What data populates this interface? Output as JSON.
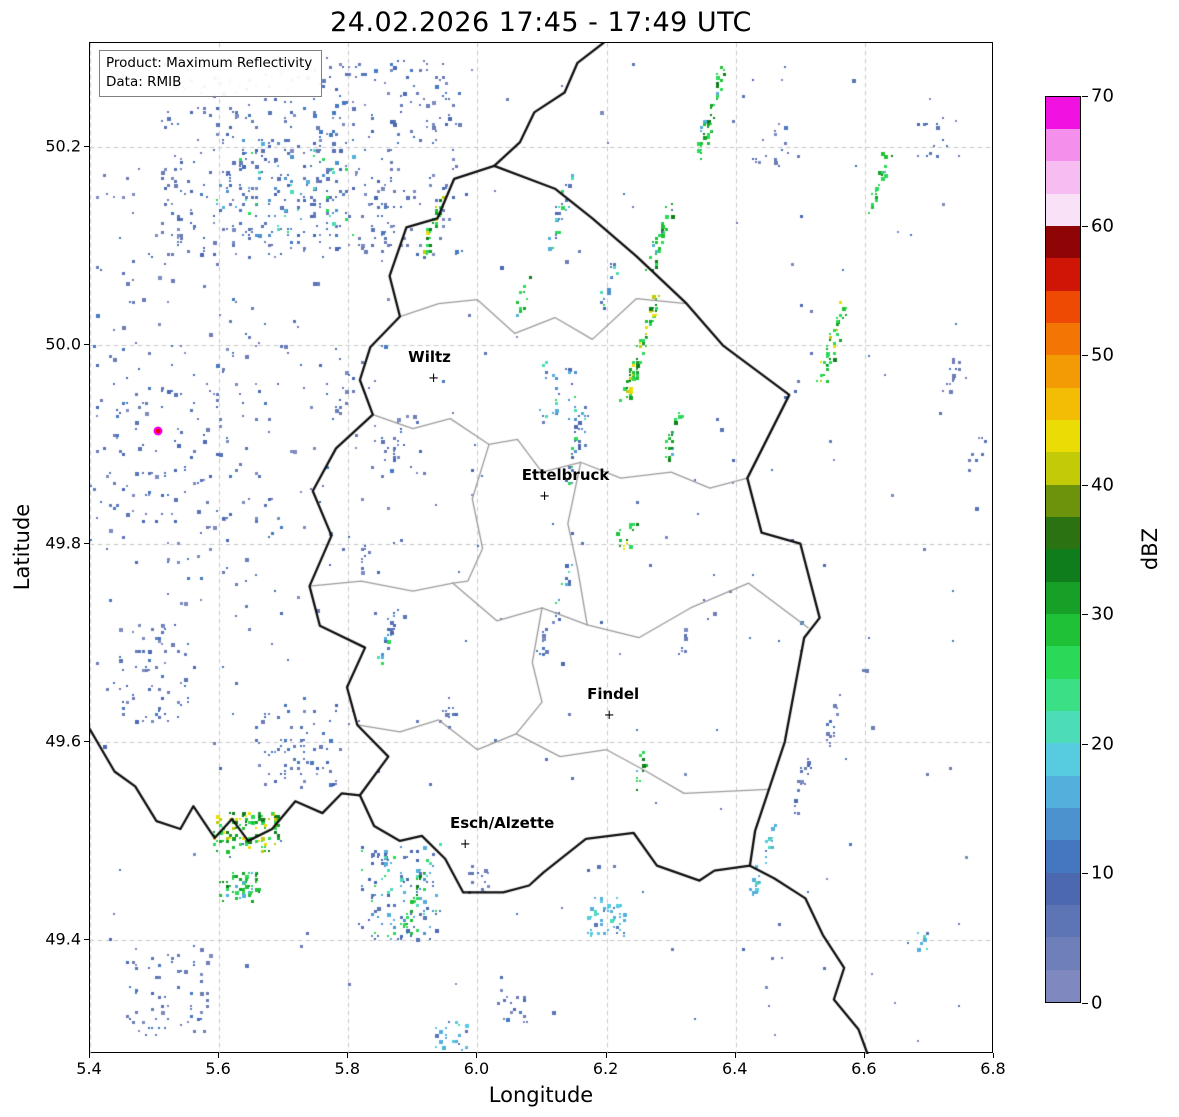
{
  "title": "24.02.2026 17:45 - 17:49 UTC",
  "info_box": {
    "line1": "Product: Maximum Reflectivity",
    "line2": "Data: RMIB"
  },
  "chart_data": {
    "type": "heatmap",
    "title": "24.02.2026 17:45 - 17:49 UTC",
    "xlabel": "Longitude",
    "ylabel": "Latitude",
    "xlim": [
      5.4,
      6.8
    ],
    "ylim": [
      49.285,
      50.305
    ],
    "xticks": [
      5.4,
      5.6,
      5.8,
      6.0,
      6.2,
      6.4,
      6.6,
      6.8
    ],
    "yticks": [
      49.4,
      49.6,
      49.8,
      50.0,
      50.2
    ],
    "grid": "dashed",
    "colorbar": {
      "label": "dBZ",
      "vmin": 0,
      "vmax": 70,
      "ticks": [
        0,
        10,
        20,
        30,
        40,
        50,
        60,
        70
      ],
      "colors": [
        "#8089bf",
        "#6e7fba",
        "#5d74b5",
        "#4c69b0",
        "#4477c0",
        "#4b92cf",
        "#53afdc",
        "#57cbe0",
        "#4cdcb8",
        "#3bdf86",
        "#2bd958",
        "#1fc136",
        "#17a028",
        "#0f7d1b",
        "#2b7212",
        "#6d930c",
        "#c3ca07",
        "#ecdc06",
        "#f3bd06",
        "#f39b05",
        "#f37504",
        "#ef4a04",
        "#cf1506",
        "#8f0505",
        "#f9e2f7",
        "#f7bcf2",
        "#f48fec",
        "#f112e2"
      ]
    },
    "cities": [
      {
        "name": "Wiltz",
        "lon": 5.932,
        "lat": 49.966,
        "dx": -4
      },
      {
        "name": "Ettelbruck",
        "lon": 6.104,
        "lat": 49.847,
        "dx": 21
      },
      {
        "name": "Findel",
        "lon": 6.204,
        "lat": 49.626,
        "dx": 4
      },
      {
        "name": "Esch/Alzette",
        "lon": 5.981,
        "lat": 49.496,
        "dx": 37
      }
    ],
    "radar_site": {
      "lon": 5.505,
      "lat": 49.914,
      "fill": "#e8000b",
      "edge": "#ff00ff"
    },
    "borders": {
      "national": [
        [
          [
            6.026,
            50.181
          ],
          [
            5.964,
            50.168
          ],
          [
            5.938,
            50.128
          ],
          [
            5.89,
            50.119
          ],
          [
            5.864,
            50.07
          ],
          [
            5.88,
            50.029
          ],
          [
            5.834,
            49.998
          ],
          [
            5.818,
            49.965
          ],
          [
            5.838,
            49.93
          ],
          [
            5.781,
            49.896
          ],
          [
            5.745,
            49.853
          ],
          [
            5.774,
            49.808
          ],
          [
            5.74,
            49.757
          ],
          [
            5.756,
            49.717
          ],
          [
            5.826,
            49.695
          ],
          [
            5.798,
            49.655
          ],
          [
            5.814,
            49.617
          ],
          [
            5.862,
            49.585
          ],
          [
            5.818,
            49.546
          ],
          [
            5.84,
            49.515
          ],
          [
            5.88,
            49.5
          ],
          [
            5.914,
            49.505
          ],
          [
            5.95,
            49.482
          ],
          [
            5.978,
            49.448
          ],
          [
            6.04,
            49.448
          ],
          [
            6.08,
            49.455
          ],
          [
            6.102,
            49.468
          ],
          [
            6.168,
            49.502
          ],
          [
            6.242,
            49.508
          ],
          [
            6.278,
            49.475
          ],
          [
            6.344,
            49.46
          ],
          [
            6.367,
            49.47
          ],
          [
            6.422,
            49.475
          ],
          [
            6.43,
            49.51
          ],
          [
            6.476,
            49.6
          ],
          [
            6.506,
            49.705
          ],
          [
            6.53,
            49.725
          ],
          [
            6.5,
            49.8
          ],
          [
            6.44,
            49.811
          ],
          [
            6.418,
            49.866
          ],
          [
            6.483,
            49.95
          ],
          [
            6.38,
            50.0
          ],
          [
            6.324,
            50.042
          ],
          [
            6.246,
            50.09
          ],
          [
            6.178,
            50.128
          ],
          [
            6.12,
            50.158
          ],
          [
            6.026,
            50.181
          ]
        ],
        [
          [
            6.026,
            50.181
          ],
          [
            6.066,
            50.205
          ],
          [
            6.088,
            50.235
          ],
          [
            6.135,
            50.255
          ],
          [
            6.155,
            50.285
          ],
          [
            6.205,
            50.31
          ]
        ],
        [
          [
            5.395,
            49.618
          ],
          [
            5.438,
            49.57
          ],
          [
            5.47,
            49.555
          ],
          [
            5.503,
            49.52
          ],
          [
            5.54,
            49.512
          ],
          [
            5.56,
            49.535
          ],
          [
            5.593,
            49.503
          ],
          [
            5.62,
            49.522
          ],
          [
            5.645,
            49.5
          ],
          [
            5.682,
            49.512
          ],
          [
            5.718,
            49.54
          ],
          [
            5.76,
            49.528
          ],
          [
            5.79,
            49.548
          ],
          [
            5.818,
            49.546
          ]
        ],
        [
          [
            6.422,
            49.475
          ],
          [
            6.46,
            49.462
          ],
          [
            6.508,
            49.442
          ],
          [
            6.535,
            49.405
          ],
          [
            6.568,
            49.372
          ],
          [
            6.552,
            49.34
          ],
          [
            6.59,
            49.31
          ],
          [
            6.607,
            49.28
          ]
        ]
      ],
      "regional": [
        [
          [
            5.88,
            50.029
          ],
          [
            5.94,
            50.042
          ],
          [
            6.0,
            50.046
          ],
          [
            6.058,
            50.012
          ],
          [
            6.12,
            50.028
          ],
          [
            6.178,
            50.006
          ],
          [
            6.246,
            50.047
          ],
          [
            6.324,
            50.042
          ]
        ],
        [
          [
            5.838,
            49.93
          ],
          [
            5.9,
            49.916
          ],
          [
            5.958,
            49.926
          ],
          [
            6.018,
            49.9
          ],
          [
            6.062,
            49.905
          ],
          [
            6.1,
            49.872
          ],
          [
            6.16,
            49.882
          ],
          [
            6.222,
            49.866
          ],
          [
            6.3,
            49.872
          ],
          [
            6.36,
            49.856
          ],
          [
            6.418,
            49.866
          ]
        ],
        [
          [
            5.74,
            49.757
          ],
          [
            5.82,
            49.762
          ],
          [
            5.9,
            49.752
          ],
          [
            5.962,
            49.76
          ],
          [
            6.03,
            49.722
          ],
          [
            6.1,
            49.735
          ],
          [
            6.17,
            49.718
          ],
          [
            6.25,
            49.705
          ],
          [
            6.33,
            49.735
          ],
          [
            6.42,
            49.76
          ],
          [
            6.512,
            49.715
          ]
        ],
        [
          [
            5.814,
            49.617
          ],
          [
            5.88,
            49.61
          ],
          [
            5.94,
            49.622
          ],
          [
            6.0,
            49.592
          ],
          [
            6.06,
            49.608
          ],
          [
            6.128,
            49.585
          ],
          [
            6.2,
            49.592
          ],
          [
            6.262,
            49.57
          ],
          [
            6.32,
            49.548
          ],
          [
            6.45,
            49.552
          ]
        ],
        [
          [
            6.018,
            49.9
          ],
          [
            5.992,
            49.845
          ],
          [
            6.008,
            49.795
          ],
          [
            5.985,
            49.762
          ],
          [
            5.962,
            49.76
          ]
        ],
        [
          [
            6.16,
            49.882
          ],
          [
            6.14,
            49.82
          ],
          [
            6.155,
            49.775
          ],
          [
            6.17,
            49.718
          ]
        ],
        [
          [
            6.1,
            49.735
          ],
          [
            6.085,
            49.68
          ],
          [
            6.1,
            49.64
          ],
          [
            6.06,
            49.608
          ]
        ]
      ]
    },
    "palettes": {
      "L": [
        "#6b7cb6",
        "#5a74b6",
        "#7d8cc0",
        "#4a69b0",
        "#4579c2"
      ],
      "M": [
        "#5a74b6",
        "#4a69b0",
        "#4b92cf",
        "#53afdc",
        "#2bd958",
        "#4cdcb8"
      ],
      "G": [
        "#2bd958",
        "#1fc136",
        "#17a028",
        "#0f7d1b",
        "#53afdc"
      ],
      "B": [
        "#2bd958",
        "#17a028",
        "#0f7d1b",
        "#ecdc06",
        "#c3ca07",
        "#1fc136"
      ],
      "C": [
        "#53afdc",
        "#57cbe0",
        "#4cdcb8",
        "#5a74b6"
      ]
    },
    "echo_clusters": [
      {
        "type": "speckle",
        "lon": 5.74,
        "lat": 50.19,
        "w": 0.46,
        "h": 0.2,
        "n": 420,
        "pal": "L"
      },
      {
        "type": "speckle",
        "lon": 5.7,
        "lat": 50.16,
        "w": 0.22,
        "h": 0.1,
        "n": 130,
        "pal": "M"
      },
      {
        "type": "streak",
        "lon": 5.93,
        "lat": 50.125,
        "len": 0.07,
        "n": 30,
        "pal": "B"
      },
      {
        "type": "streak",
        "lon": 6.13,
        "lat": 50.14,
        "len": 0.08,
        "n": 28,
        "pal": "M"
      },
      {
        "type": "streak",
        "lon": 6.36,
        "lat": 50.235,
        "len": 0.09,
        "n": 45,
        "pal": "G"
      },
      {
        "type": "streak",
        "lon": 6.28,
        "lat": 50.11,
        "len": 0.07,
        "n": 32,
        "pal": "G"
      },
      {
        "type": "streak",
        "lon": 6.2,
        "lat": 50.06,
        "len": 0.05,
        "n": 16,
        "pal": "M"
      },
      {
        "type": "streak",
        "lon": 6.25,
        "lat": 49.995,
        "len": 0.11,
        "n": 70,
        "pal": "B"
      },
      {
        "type": "streak",
        "lon": 6.3,
        "lat": 49.91,
        "len": 0.05,
        "n": 24,
        "pal": "G"
      },
      {
        "type": "streak",
        "lon": 6.55,
        "lat": 50.005,
        "len": 0.08,
        "n": 40,
        "pal": "B"
      },
      {
        "type": "speckle",
        "lon": 6.12,
        "lat": 49.955,
        "w": 0.07,
        "h": 0.06,
        "n": 28,
        "pal": "M"
      },
      {
        "type": "streak",
        "lon": 6.15,
        "lat": 49.9,
        "len": 0.08,
        "n": 28,
        "pal": "M"
      },
      {
        "type": "speckle",
        "lon": 6.23,
        "lat": 49.81,
        "w": 0.03,
        "h": 0.03,
        "n": 16,
        "pal": "B"
      },
      {
        "type": "streak",
        "lon": 6.13,
        "lat": 49.75,
        "len": 0.05,
        "n": 16,
        "pal": "M"
      },
      {
        "type": "streak",
        "lon": 5.86,
        "lat": 49.71,
        "len": 0.06,
        "n": 22,
        "pal": "M"
      },
      {
        "type": "speckle",
        "lon": 5.95,
        "lat": 49.63,
        "w": 0.03,
        "h": 0.03,
        "n": 12,
        "pal": "L"
      },
      {
        "type": "streak",
        "lon": 6.25,
        "lat": 49.57,
        "len": 0.04,
        "n": 13,
        "pal": "G"
      },
      {
        "type": "streak",
        "lon": 6.5,
        "lat": 49.56,
        "len": 0.06,
        "n": 18,
        "pal": "L"
      },
      {
        "type": "streak",
        "lon": 6.55,
        "lat": 49.62,
        "len": 0.05,
        "n": 15,
        "pal": "L"
      },
      {
        "type": "streak",
        "lon": 6.44,
        "lat": 49.48,
        "len": 0.07,
        "n": 28,
        "pal": "C"
      },
      {
        "type": "speckle",
        "lon": 6.2,
        "lat": 49.425,
        "w": 0.06,
        "h": 0.04,
        "n": 55,
        "pal": "C"
      },
      {
        "type": "speckle",
        "lon": 6.0,
        "lat": 49.46,
        "w": 0.03,
        "h": 0.03,
        "n": 14,
        "pal": "L"
      },
      {
        "type": "speckle",
        "lon": 5.88,
        "lat": 49.45,
        "w": 0.13,
        "h": 0.1,
        "n": 130,
        "pal": "M"
      },
      {
        "type": "streak",
        "lon": 5.9,
        "lat": 49.44,
        "len": 0.06,
        "n": 22,
        "pal": "G"
      },
      {
        "type": "speckle",
        "lon": 5.64,
        "lat": 49.51,
        "w": 0.1,
        "h": 0.04,
        "n": 110,
        "pal": "B"
      },
      {
        "type": "speckle",
        "lon": 5.63,
        "lat": 49.455,
        "w": 0.06,
        "h": 0.03,
        "n": 55,
        "pal": "G"
      },
      {
        "type": "speckle",
        "lon": 5.52,
        "lat": 49.35,
        "w": 0.13,
        "h": 0.09,
        "n": 65,
        "pal": "L"
      },
      {
        "type": "speckle",
        "lon": 5.96,
        "lat": 49.305,
        "w": 0.05,
        "h": 0.03,
        "n": 22,
        "pal": "C"
      },
      {
        "type": "streak",
        "lon": 6.62,
        "lat": 50.165,
        "len": 0.06,
        "n": 22,
        "pal": "G"
      },
      {
        "type": "speckle",
        "lon": 6.7,
        "lat": 50.21,
        "w": 0.05,
        "h": 0.04,
        "n": 14,
        "pal": "L"
      },
      {
        "type": "streak",
        "lon": 6.73,
        "lat": 49.96,
        "len": 0.06,
        "n": 16,
        "pal": "L"
      },
      {
        "type": "streak",
        "lon": 6.77,
        "lat": 49.89,
        "len": 0.04,
        "n": 9,
        "pal": "L"
      },
      {
        "type": "ring",
        "lon": 5.505,
        "lat": 49.914,
        "r0": 0.03,
        "r1": 0.27,
        "n": 430,
        "pal": "L"
      },
      {
        "type": "speckle",
        "lon": 5.5,
        "lat": 49.67,
        "w": 0.11,
        "h": 0.1,
        "n": 60,
        "pal": "L"
      },
      {
        "type": "speckle",
        "lon": 5.72,
        "lat": 49.6,
        "w": 0.13,
        "h": 0.09,
        "n": 75,
        "pal": "L"
      },
      {
        "type": "speckle",
        "lon": 5.88,
        "lat": 49.9,
        "w": 0.07,
        "h": 0.06,
        "n": 26,
        "pal": "L"
      },
      {
        "type": "streak",
        "lon": 6.07,
        "lat": 50.05,
        "len": 0.04,
        "n": 13,
        "pal": "G"
      },
      {
        "type": "speckle",
        "lon": 6.05,
        "lat": 49.33,
        "w": 0.05,
        "h": 0.03,
        "n": 15,
        "pal": "L"
      },
      {
        "type": "speckle",
        "lon": 6.1,
        "lat": 49.79,
        "w": 1.36,
        "h": 0.99,
        "n": 220,
        "pal": "L"
      },
      {
        "type": "streak",
        "lon": 5.82,
        "lat": 49.78,
        "len": 0.04,
        "n": 10,
        "pal": "L"
      },
      {
        "type": "speckle",
        "lon": 6.68,
        "lat": 49.4,
        "w": 0.04,
        "h": 0.02,
        "n": 9,
        "pal": "C"
      },
      {
        "type": "streak",
        "lon": 6.32,
        "lat": 49.7,
        "len": 0.03,
        "n": 7,
        "pal": "L"
      },
      {
        "type": "streak",
        "lon": 5.79,
        "lat": 49.95,
        "len": 0.05,
        "n": 13,
        "pal": "L"
      },
      {
        "type": "speckle",
        "lon": 6.45,
        "lat": 50.2,
        "w": 0.06,
        "h": 0.05,
        "n": 16,
        "pal": "L"
      },
      {
        "type": "streak",
        "lon": 6.1,
        "lat": 49.7,
        "len": 0.04,
        "n": 11,
        "pal": "L"
      }
    ]
  }
}
